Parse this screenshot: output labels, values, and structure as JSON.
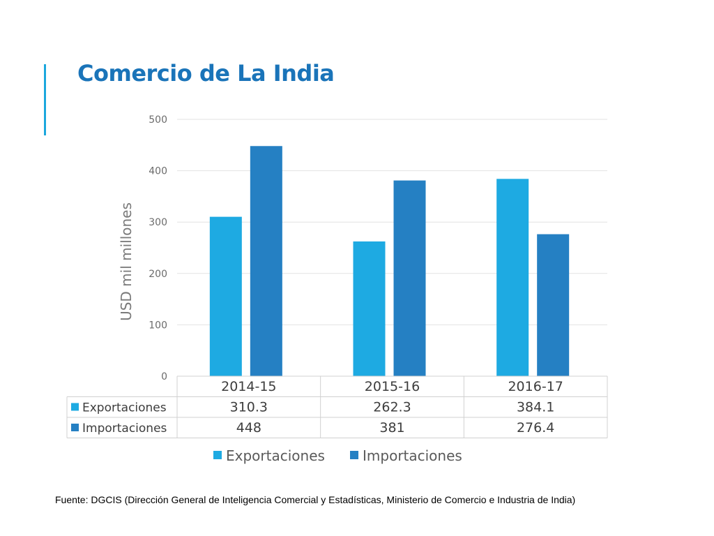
{
  "slide": {
    "title": "Comercio de La India",
    "source": "Fuente: DGCIS (Dirección General de Inteligencia Comercial y Estadísticas, Ministerio de Comercio e Industria de India)"
  },
  "colors": {
    "exports": "#1eaae2",
    "imports": "#2580c3",
    "title": "#1a74b9",
    "axis_text": "#6b6b6b",
    "grid": "#e2e2e2"
  },
  "chart_data": {
    "type": "bar",
    "title": "",
    "ylabel": "USD mil millones",
    "xlabel": "",
    "ylim": [
      0,
      500
    ],
    "yticks": [
      0,
      100,
      200,
      300,
      400,
      500
    ],
    "categories": [
      "2014-15",
      "2015-16",
      "2016-17"
    ],
    "series": [
      {
        "name": "Exportaciones",
        "values": [
          310.3,
          262.3,
          384.1
        ],
        "labels": [
          "310.3",
          "262.3",
          "384.1"
        ]
      },
      {
        "name": "Importaciones",
        "values": [
          448,
          381,
          276.4
        ],
        "labels": [
          "448",
          "381",
          "276.4"
        ]
      }
    ],
    "grid": true,
    "legend": "bottom",
    "data_table": true
  }
}
